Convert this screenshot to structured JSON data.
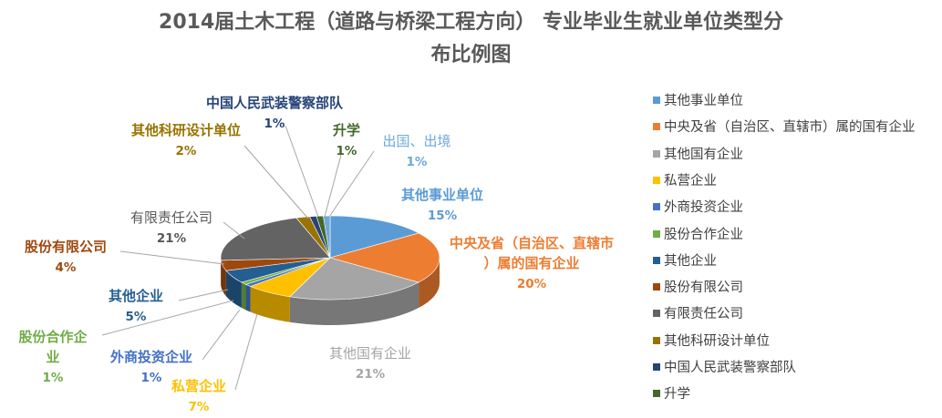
{
  "chart_data": {
    "type": "pie",
    "title": "2014届土木工程（道路与桥梁工程方向） 专业毕业生就业单位类型分布比例图",
    "title_lines": [
      "2014届土木工程（道路与桥梁工程方向） 专业毕业生就业单位类型分",
      "布比例图"
    ],
    "legend_position": "right",
    "unit": "%",
    "slices": [
      {
        "name": "其他事业单位",
        "value": 15,
        "label": "15%",
        "color": "#5B9BD5"
      },
      {
        "name": "中央及省（自治区、直辖市）属的国有企业",
        "value": 20,
        "label": "20%",
        "color": "#ED7D31"
      },
      {
        "name": "其他国有企业",
        "value": 21,
        "label": "21%",
        "color": "#A5A5A5"
      },
      {
        "name": "私营企业",
        "value": 7,
        "label": "7%",
        "color": "#FFC000"
      },
      {
        "name": "外商投资企业",
        "value": 1,
        "label": "1%",
        "color": "#4472C4"
      },
      {
        "name": "股份合作企业",
        "value": 1,
        "label": "1%",
        "color": "#70AD47"
      },
      {
        "name": "其他企业",
        "value": 5,
        "label": "5%",
        "color": "#255E91"
      },
      {
        "name": "股份有限公司",
        "value": 4,
        "label": "4%",
        "color": "#9E480E"
      },
      {
        "name": "有限责任公司",
        "value": 21,
        "label": "21%",
        "color": "#636363"
      },
      {
        "name": "其他科研设计单位",
        "value": 2,
        "label": "2%",
        "color": "#997300"
      },
      {
        "name": "中国人民武装警察部队",
        "value": 1,
        "label": "1%",
        "color": "#264478"
      },
      {
        "name": "升学",
        "value": 1,
        "label": "1%",
        "color": "#43682B"
      }
    ],
    "overseas": {
      "name": "出国、出境",
      "value": 1,
      "label": "1%",
      "color": "#6FA8DC"
    }
  }
}
